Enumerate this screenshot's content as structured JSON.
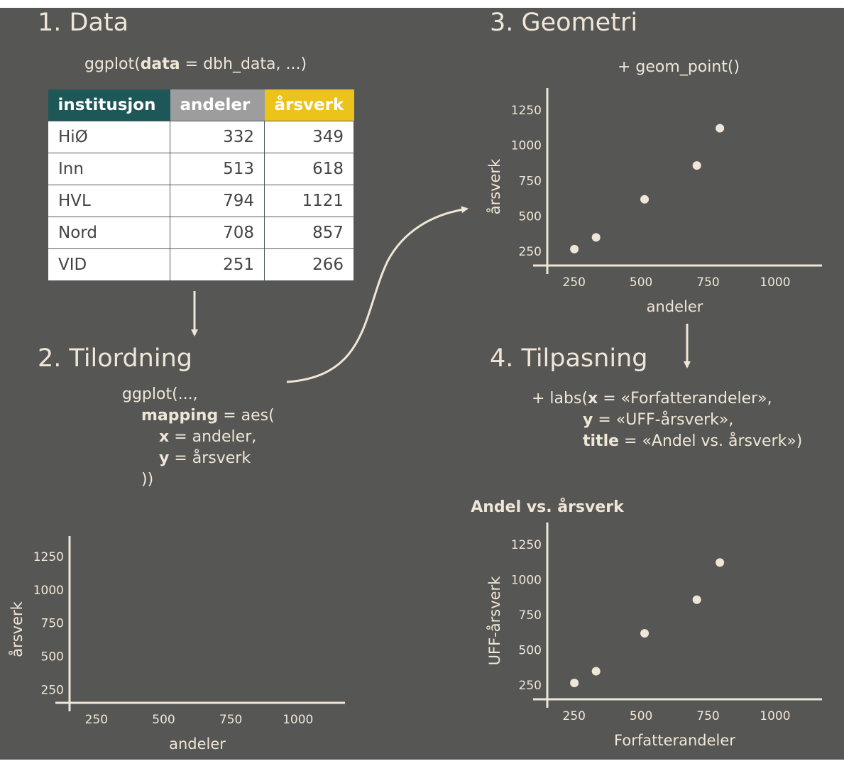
{
  "colors": {
    "panel": "#565654",
    "text": "#efe6d7",
    "institusjon_header": "#1e5758",
    "andeler_header": "#9d9d9d",
    "arsverk_header": "#ebc31a"
  },
  "steps": {
    "data": {
      "heading": "1. Data",
      "code": {
        "pre": "ggplot(",
        "bold": "data",
        "post": " = dbh_data, ...)"
      }
    },
    "mapping": {
      "heading": "2. Tilordning",
      "code": {
        "line1": "ggplot(...,",
        "mapping_kw": "mapping",
        "mapping_rest": " = aes(",
        "x_kw": "x",
        "x_rest": " = andeler,",
        "y_kw": "y",
        "y_rest": " = årsverk",
        "close": "))"
      }
    },
    "geometry": {
      "heading": "3. Geometri",
      "code": "+ geom_point()"
    },
    "customize": {
      "heading": "4. Tilpasning",
      "code": {
        "pre": "+ labs(",
        "x_kw": "x",
        "x_rest": " = «Forfatterandeler»,",
        "y_kw": "y",
        "y_rest": " = «UFF-årsverk»,",
        "title_kw": "title",
        "title_rest": " = «Andel vs. årsverk»)"
      }
    }
  },
  "table": {
    "headers": [
      "institusjon",
      "andeler",
      "årsverk"
    ],
    "rows": [
      [
        "HiØ",
        "332",
        "349"
      ],
      [
        "Inn",
        "513",
        "618"
      ],
      [
        "HVL",
        "794",
        "1121"
      ],
      [
        "Nord",
        "708",
        "857"
      ],
      [
        "VID",
        "251",
        "266"
      ]
    ]
  },
  "chart_data": [
    {
      "id": "empty",
      "type": "scatter",
      "x": [],
      "y": [],
      "xlabel": "andeler",
      "ylabel": "årsverk",
      "xticks": [
        250,
        500,
        750,
        1000
      ],
      "yticks": [
        250,
        500,
        750,
        1000,
        1250
      ],
      "xlim": [
        150,
        1175
      ],
      "ylim": [
        150,
        1405
      ]
    },
    {
      "id": "geometry",
      "type": "scatter",
      "x": [
        251,
        332,
        513,
        708,
        794
      ],
      "y": [
        266,
        349,
        618,
        857,
        1121
      ],
      "xlabel": "andeler",
      "ylabel": "årsverk",
      "xticks": [
        250,
        500,
        750,
        1000
      ],
      "yticks": [
        250,
        500,
        750,
        1000,
        1250
      ],
      "xlim": [
        150,
        1175
      ],
      "ylim": [
        150,
        1405
      ]
    },
    {
      "id": "final",
      "type": "scatter",
      "title": "Andel vs. årsverk",
      "x": [
        251,
        332,
        513,
        708,
        794
      ],
      "y": [
        266,
        349,
        618,
        857,
        1121
      ],
      "xlabel": "Forfatterandeler",
      "ylabel": "UFF-årsverk",
      "xticks": [
        250,
        500,
        750,
        1000
      ],
      "yticks": [
        250,
        500,
        750,
        1000,
        1250
      ],
      "xlim": [
        150,
        1175
      ],
      "ylim": [
        150,
        1405
      ]
    }
  ]
}
